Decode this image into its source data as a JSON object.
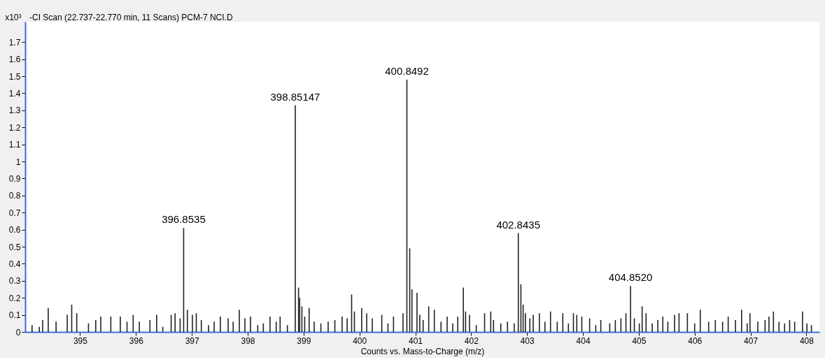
{
  "chart_data": {
    "type": "bar",
    "title": "-CI Scan (22.737-22.770 min, 11 Scans) PCM-7 NCI.D",
    "xlabel": "Counts vs. Mass-to-Charge (m/z)",
    "ylabel": "x10³",
    "x": [
      394.14,
      394.27,
      394.33,
      394.43,
      394.57,
      394.77,
      394.85,
      394.94,
      395.15,
      395.28,
      395.37,
      395.55,
      395.72,
      395.84,
      395.95,
      396.06,
      396.25,
      396.37,
      396.48,
      396.63,
      396.7,
      396.79,
      396.8535,
      396.92,
      397.01,
      397.08,
      397.17,
      397.3,
      397.4,
      397.51,
      397.65,
      397.74,
      397.85,
      397.95,
      398.05,
      398.18,
      398.28,
      398.4,
      398.51,
      398.58,
      398.71,
      398.85147,
      398.91,
      398.93,
      398.97,
      399.02,
      399.1,
      399.19,
      399.31,
      399.44,
      399.56,
      399.69,
      399.78,
      399.86,
      399.91,
      400.04,
      400.13,
      400.23,
      400.4,
      400.51,
      400.61,
      400.78,
      400.8492,
      400.9,
      400.94,
      401.03,
      401.08,
      401.14,
      401.24,
      401.34,
      401.46,
      401.57,
      401.67,
      401.76,
      401.86,
      401.9,
      401.97,
      402.09,
      402.24,
      402.35,
      402.4,
      402.53,
      402.65,
      402.77,
      402.8435,
      402.89,
      402.93,
      402.97,
      403.05,
      403.11,
      403.22,
      403.32,
      403.42,
      403.54,
      403.64,
      403.74,
      403.83,
      403.89,
      403.98,
      404.12,
      404.23,
      404.32,
      404.48,
      404.58,
      404.68,
      404.77,
      404.852,
      404.92,
      405.01,
      405.06,
      405.13,
      405.24,
      405.34,
      405.43,
      405.52,
      405.64,
      405.72,
      405.87,
      406.0,
      406.1,
      406.25,
      406.37,
      406.5,
      406.6,
      406.73,
      406.84,
      406.94,
      406.99,
      407.13,
      407.26,
      407.33,
      407.41,
      407.51,
      407.61,
      407.7,
      407.79,
      407.93,
      408.01,
      408.09
    ],
    "values": [
      0.04,
      0.03,
      0.07,
      0.14,
      0.06,
      0.1,
      0.16,
      0.11,
      0.05,
      0.07,
      0.09,
      0.09,
      0.09,
      0.06,
      0.1,
      0.06,
      0.07,
      0.1,
      0.03,
      0.1,
      0.11,
      0.08,
      0.61,
      0.13,
      0.1,
      0.11,
      0.07,
      0.04,
      0.06,
      0.09,
      0.08,
      0.06,
      0.13,
      0.08,
      0.09,
      0.04,
      0.05,
      0.09,
      0.06,
      0.09,
      0.04,
      1.33,
      0.26,
      0.2,
      0.15,
      0.09,
      0.14,
      0.06,
      0.05,
      0.06,
      0.07,
      0.09,
      0.08,
      0.22,
      0.12,
      0.14,
      0.11,
      0.08,
      0.1,
      0.05,
      0.09,
      0.11,
      1.48,
      0.49,
      0.25,
      0.23,
      0.1,
      0.07,
      0.15,
      0.13,
      0.06,
      0.09,
      0.05,
      0.09,
      0.26,
      0.12,
      0.1,
      0.04,
      0.11,
      0.12,
      0.07,
      0.05,
      0.06,
      0.05,
      0.58,
      0.28,
      0.16,
      0.11,
      0.08,
      0.1,
      0.11,
      0.06,
      0.12,
      0.06,
      0.11,
      0.05,
      0.11,
      0.1,
      0.09,
      0.08,
      0.04,
      0.07,
      0.05,
      0.07,
      0.08,
      0.11,
      0.27,
      0.08,
      0.05,
      0.15,
      0.11,
      0.05,
      0.07,
      0.09,
      0.06,
      0.1,
      0.11,
      0.11,
      0.05,
      0.13,
      0.06,
      0.07,
      0.06,
      0.09,
      0.07,
      0.13,
      0.05,
      0.11,
      0.06,
      0.07,
      0.09,
      0.12,
      0.06,
      0.05,
      0.07,
      0.06,
      0.12,
      0.05,
      0.04
    ],
    "color": "#222222",
    "xlim": [
      394.08,
      408.17
    ],
    "xticks": [
      395,
      396,
      397,
      398,
      399,
      400,
      401,
      402,
      403,
      404,
      405,
      406,
      407,
      408
    ],
    "ylim": [
      0,
      1.82
    ],
    "yticks": [
      0,
      0.1,
      0.2,
      0.3,
      0.4,
      0.5,
      0.6,
      0.7,
      0.8,
      0.9,
      1,
      1.1,
      1.2,
      1.3,
      1.4,
      1.5,
      1.6,
      1.7
    ],
    "grid": false,
    "annotations": [
      {
        "text": "396.8535",
        "x": 396.8535,
        "y": 0.61
      },
      {
        "text": "398.85147",
        "x": 398.85147,
        "y": 1.33
      },
      {
        "text": "400.8492",
        "x": 400.8492,
        "y": 1.48
      },
      {
        "text": "402.8435",
        "x": 402.8435,
        "y": 0.58
      },
      {
        "text": "404.8520",
        "x": 404.852,
        "y": 0.27
      }
    ]
  }
}
